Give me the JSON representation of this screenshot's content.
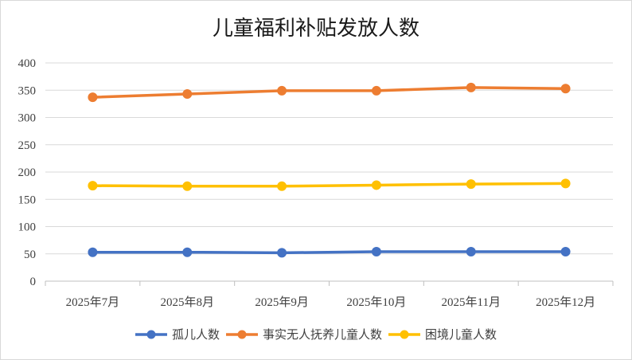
{
  "chart_data": {
    "type": "line",
    "title": "儿童福利补贴发放人数",
    "xlabel": "",
    "ylabel": "",
    "ylim": [
      0,
      400
    ],
    "yticks": [
      0,
      50,
      100,
      150,
      200,
      250,
      300,
      350,
      400
    ],
    "grid": true,
    "legend_position": "bottom",
    "categories": [
      "2025年7月",
      "2025年8月",
      "2025年9月",
      "2025年10月",
      "2025年11月",
      "2025年12月"
    ],
    "series": [
      {
        "name": "孤儿人数",
        "color": "#4472C4",
        "values": [
          53,
          53,
          52,
          54,
          54,
          54
        ]
      },
      {
        "name": "事实无人抚养儿童人数",
        "color": "#ED7D31",
        "values": [
          337,
          343,
          349,
          349,
          355,
          353
        ]
      },
      {
        "name": "困境儿童人数",
        "color": "#FFC000",
        "values": [
          175,
          174,
          174,
          176,
          178,
          179
        ]
      }
    ]
  }
}
